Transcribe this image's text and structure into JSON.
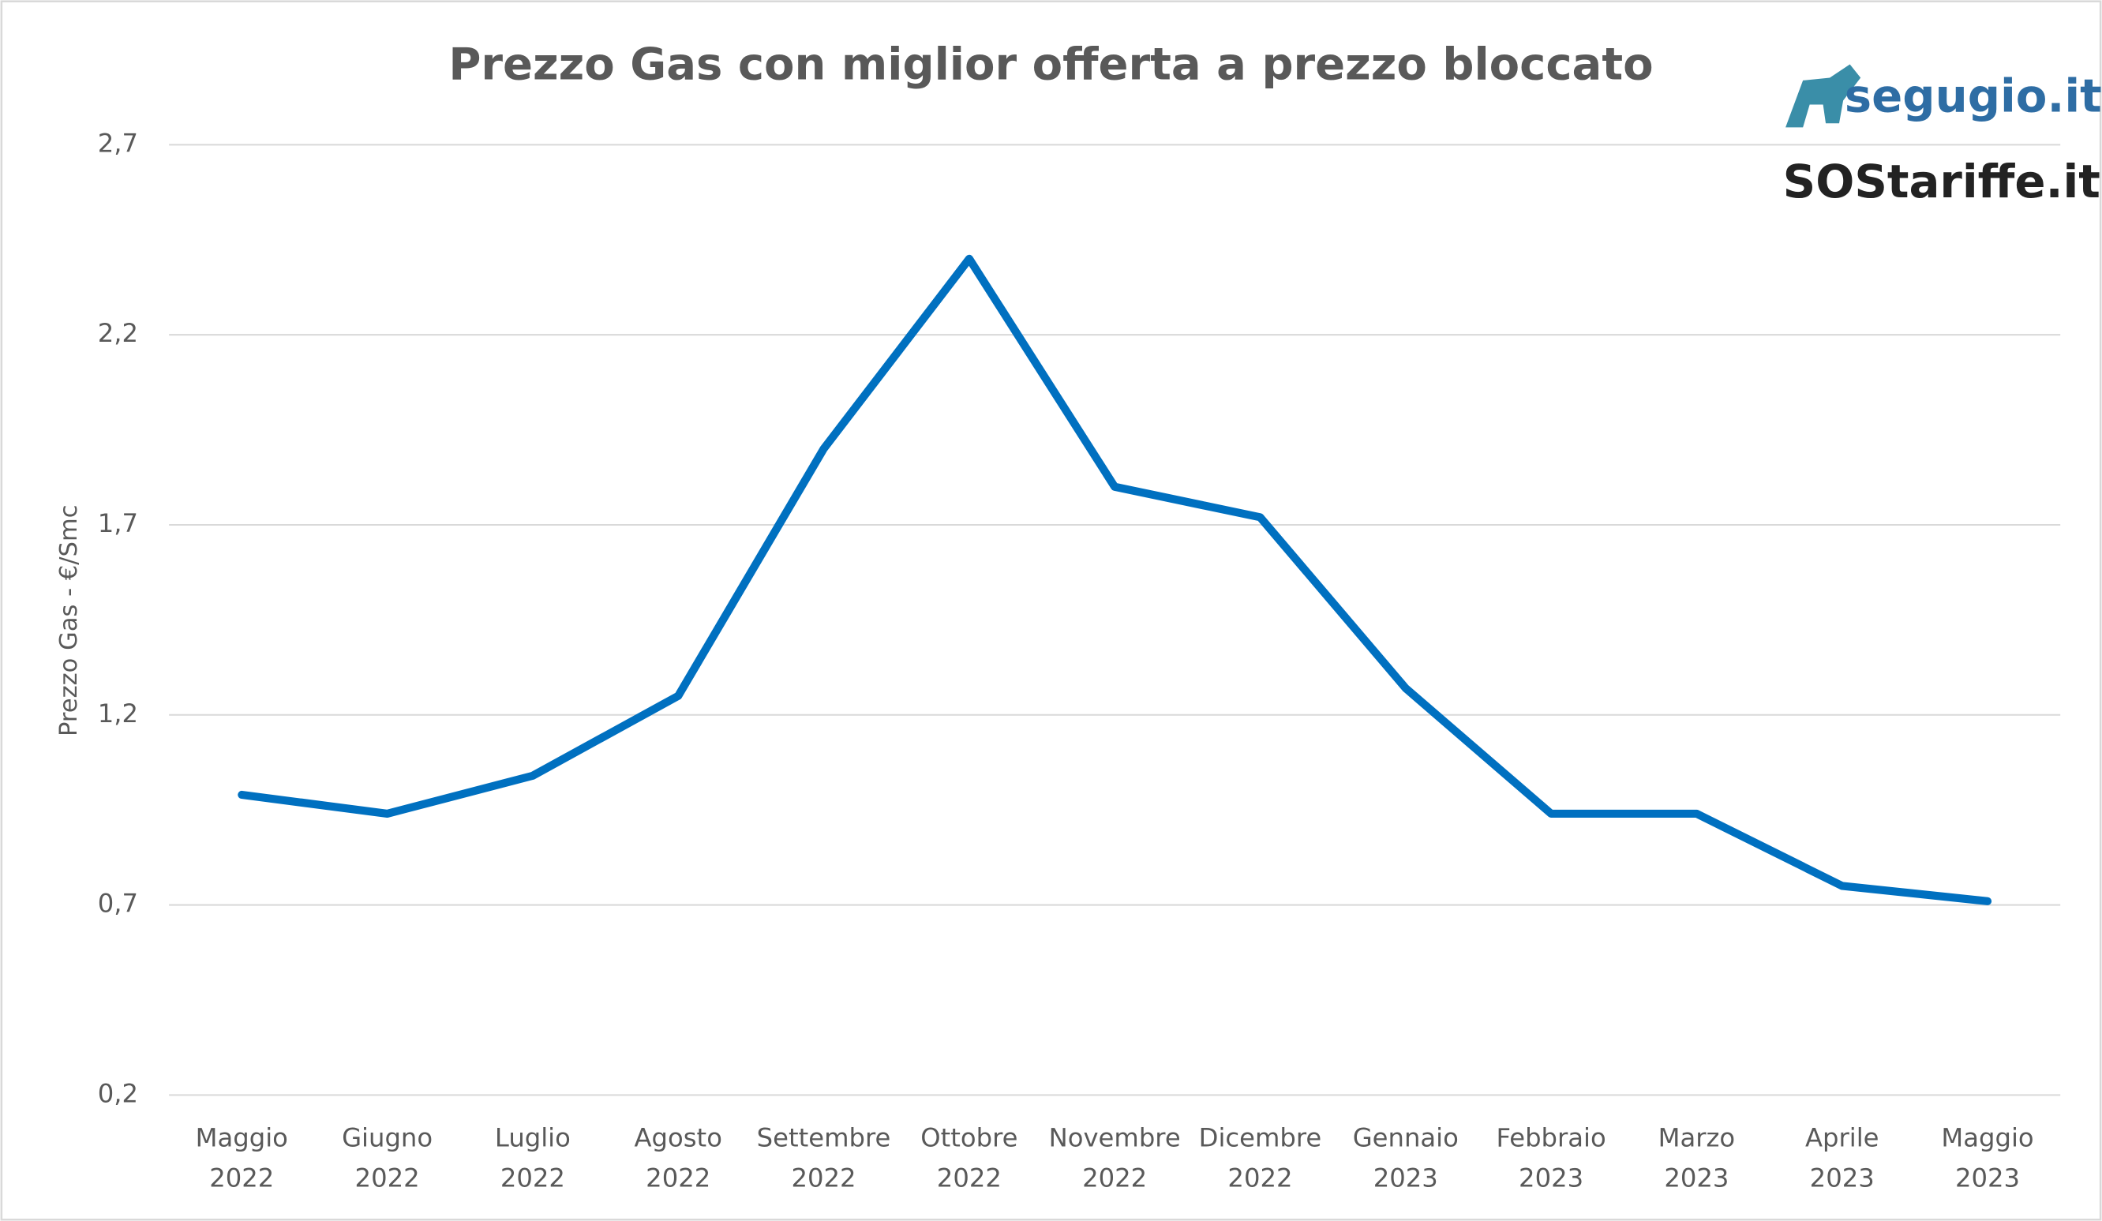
{
  "chart_data": {
    "type": "line",
    "title": "Prezzo Gas con miglior offerta a prezzo bloccato",
    "y_label": "Prezzo Gas - €/Smc",
    "logos": [
      "segugio.it",
      "SOStariffe.it"
    ],
    "categories": [
      [
        "Maggio",
        "2022"
      ],
      [
        "Giugno",
        "2022"
      ],
      [
        "Luglio",
        "2022"
      ],
      [
        "Agosto",
        "2022"
      ],
      [
        "Settembre",
        "2022"
      ],
      [
        "Ottobre",
        "2022"
      ],
      [
        "Novembre",
        "2022"
      ],
      [
        "Dicembre",
        "2022"
      ],
      [
        "Gennaio",
        "2023"
      ],
      [
        "Febbraio",
        "2023"
      ],
      [
        "Marzo",
        "2023"
      ],
      [
        "Aprile",
        "2023"
      ],
      [
        "Maggio",
        "2023"
      ]
    ],
    "series": [
      {
        "name": "Prezzo Gas",
        "color": "#0070c0",
        "values": [
          0.99,
          0.94,
          1.04,
          1.25,
          1.9,
          2.4,
          1.8,
          1.72,
          1.27,
          0.94,
          0.94,
          0.75,
          0.71
        ]
      }
    ],
    "ylim": [
      0.2,
      2.7
    ],
    "yticks": [
      {
        "value": 0.2,
        "label": "0,2"
      },
      {
        "value": 0.7,
        "label": "0,7"
      },
      {
        "value": 1.2,
        "label": "1,2"
      },
      {
        "value": 1.7,
        "label": "1,7"
      },
      {
        "value": 2.2,
        "label": "2,2"
      },
      {
        "value": 2.7,
        "label": "2,7"
      }
    ],
    "grid": true
  }
}
